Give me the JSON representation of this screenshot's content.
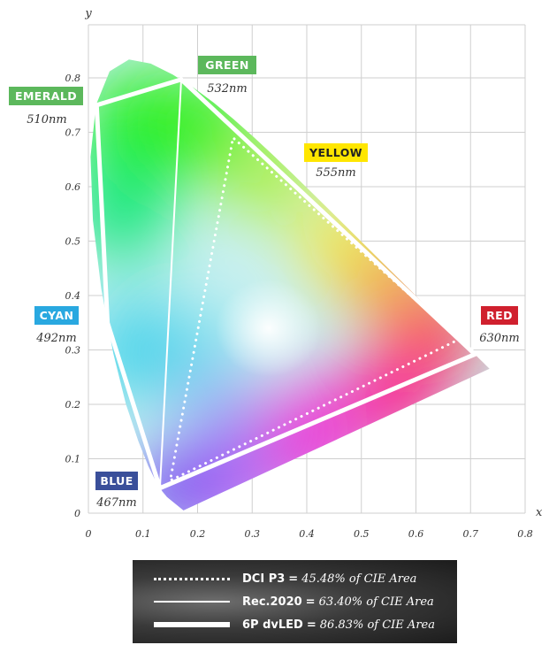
{
  "chart_data": {
    "type": "chromaticity-diagram",
    "xlabel": "x",
    "ylabel": "y",
    "xlim": [
      0,
      0.8
    ],
    "ylim": [
      0,
      0.85
    ],
    "x_ticks": [
      "0",
      "0.1",
      "0.2",
      "0.3",
      "0.4",
      "0.5",
      "0.6",
      "0.7",
      "0.8"
    ],
    "y_ticks": [
      "0",
      "0.1",
      "0.2",
      "0.3",
      "0.4",
      "0.5",
      "0.6",
      "0.7",
      "0.8"
    ],
    "grid": true,
    "spectral_locus": [
      [
        0.1741,
        0.005
      ],
      [
        0.144,
        0.0297
      ],
      [
        0.1355,
        0.0399
      ],
      [
        0.1241,
        0.0578
      ],
      [
        0.1096,
        0.0868
      ],
      [
        0.0913,
        0.1327
      ],
      [
        0.0687,
        0.2007
      ],
      [
        0.0454,
        0.295
      ],
      [
        0.0235,
        0.4127
      ],
      [
        0.0082,
        0.5384
      ],
      [
        0.0039,
        0.6548
      ],
      [
        0.0139,
        0.7502
      ],
      [
        0.0389,
        0.812
      ],
      [
        0.0743,
        0.8338
      ],
      [
        0.1142,
        0.8262
      ],
      [
        0.1547,
        0.8059
      ],
      [
        0.1929,
        0.7816
      ],
      [
        0.2296,
        0.7543
      ],
      [
        0.2658,
        0.7243
      ],
      [
        0.3016,
        0.6923
      ],
      [
        0.3373,
        0.6589
      ],
      [
        0.3731,
        0.6245
      ],
      [
        0.4087,
        0.5896
      ],
      [
        0.4441,
        0.5547
      ],
      [
        0.4788,
        0.5202
      ],
      [
        0.5125,
        0.4866
      ],
      [
        0.5448,
        0.4544
      ],
      [
        0.5752,
        0.4242
      ],
      [
        0.6029,
        0.3965
      ],
      [
        0.627,
        0.3725
      ],
      [
        0.6482,
        0.3514
      ],
      [
        0.6658,
        0.334
      ],
      [
        0.6801,
        0.3197
      ],
      [
        0.6915,
        0.3083
      ],
      [
        0.7006,
        0.2993
      ],
      [
        0.7079,
        0.292
      ],
      [
        0.714,
        0.2859
      ],
      [
        0.719,
        0.2809
      ],
      [
        0.723,
        0.277
      ],
      [
        0.726,
        0.274
      ],
      [
        0.7347,
        0.2653
      ]
    ],
    "gamuts": [
      {
        "name": "DCI P3",
        "style": "dotted",
        "value": "45.48% of CIE Area",
        "points": [
          [
            0.68,
            0.32
          ],
          [
            0.265,
            0.69
          ],
          [
            0.15,
            0.06
          ]
        ]
      },
      {
        "name": "Rec.2020",
        "style": "thin",
        "value": "63.40% of CIE Area",
        "points": [
          [
            0.708,
            0.292
          ],
          [
            0.17,
            0.797
          ],
          [
            0.131,
            0.046
          ]
        ]
      },
      {
        "name": "6P dvLED",
        "style": "thick",
        "value": "86.83% of CIE Area",
        "points": [
          [
            0.708,
            0.292
          ],
          [
            0.17,
            0.797
          ],
          [
            0.015,
            0.75
          ],
          [
            0.035,
            0.35
          ],
          [
            0.131,
            0.046
          ]
        ]
      }
    ],
    "primaries": [
      {
        "label": "GREEN",
        "wavelength": "532nm",
        "color": "#5cb85c",
        "text_color": "#ffffff"
      },
      {
        "label": "EMERALD",
        "wavelength": "510nm",
        "color": "#5cb85c",
        "text_color": "#ffffff"
      },
      {
        "label": "YELLOW",
        "wavelength": "555nm",
        "color": "#ffe600",
        "text_color": "#222222"
      },
      {
        "label": "CYAN",
        "wavelength": "492nm",
        "color": "#29a8e0",
        "text_color": "#ffffff"
      },
      {
        "label": "RED",
        "wavelength": "630nm",
        "color": "#d0202e",
        "text_color": "#ffffff"
      },
      {
        "label": "BLUE",
        "wavelength": "467nm",
        "color": "#3a4f9a",
        "text_color": "#ffffff"
      }
    ]
  },
  "legend": {
    "equals": "="
  }
}
